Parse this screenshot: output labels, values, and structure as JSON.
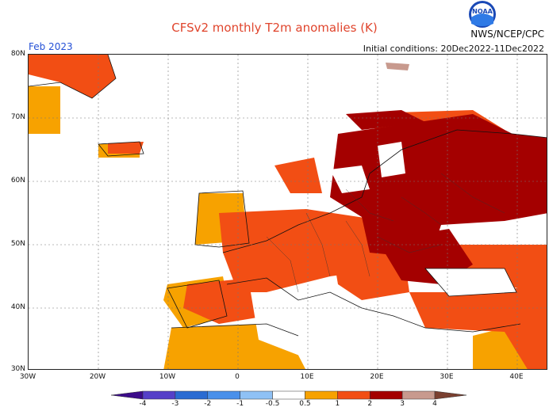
{
  "title": "CFSv2 monthly T2m anomalies (K)",
  "month_label": "Feb 2023",
  "agency_label": "NWS/NCEP/CPC",
  "initial_conditions": "Initial conditions: 20Dec2022-11Dec2022",
  "logo_text": "NOAA",
  "map": {
    "region": "Europe",
    "lat_labels": [
      "80N",
      "70N",
      "60N",
      "50N",
      "40N",
      "30N"
    ],
    "lon_labels": [
      "30W",
      "20W",
      "10W",
      "0",
      "10E",
      "20E",
      "30E",
      "40E"
    ],
    "anomaly_colors": {
      "0.5_to_1": "#f7a200",
      "1_to_2": "#f24e14",
      "2_to_3": "#a40000",
      "3_to_4": "#c89a8e",
      "neutral": "#ffffff"
    }
  },
  "colorbar": {
    "tick_labels": [
      "-4",
      "-3",
      "-2",
      "-1",
      "-0.5",
      "0.5",
      "1",
      "2",
      "3",
      "4"
    ],
    "bins": [
      {
        "color": "#3c0c8a"
      },
      {
        "color": "#5540c8"
      },
      {
        "color": "#2a6bd2"
      },
      {
        "color": "#4a90ea"
      },
      {
        "color": "#8fc1f5"
      },
      {
        "color": "#ffffff"
      },
      {
        "color": "#f7a200"
      },
      {
        "color": "#f24e14"
      },
      {
        "color": "#a40000"
      },
      {
        "color": "#c89a8e"
      },
      {
        "color": "#7a4030"
      }
    ]
  }
}
